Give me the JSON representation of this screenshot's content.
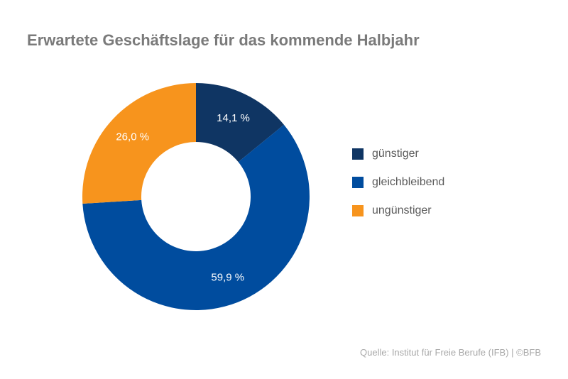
{
  "title": "Erwartete Geschäftslage für das kommende Halbjahr",
  "source": "Quelle: Institut für Freie Berufe (IFB) | ©BFB",
  "chart_data": {
    "type": "pie",
    "donut": true,
    "title": "Erwartete Geschäftslage für das kommende Halbjahr",
    "legend_position": "right",
    "slices": [
      {
        "name": "günstiger",
        "value": 14.1,
        "label": "14,1 %",
        "color": "#0f3563"
      },
      {
        "name": "gleichbleibend",
        "value": 59.9,
        "label": "59,9 %",
        "color": "#004c9e"
      },
      {
        "name": "ungünstiger",
        "value": 26.0,
        "label": "26,0 %",
        "color": "#f7941d"
      }
    ]
  }
}
